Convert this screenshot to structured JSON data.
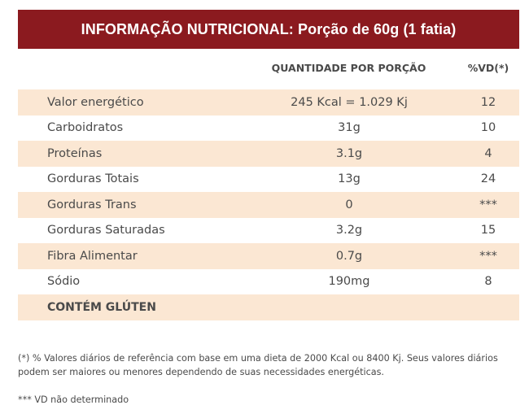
{
  "title": "INFORMAÇÃO NUTRICIONAL: Porção de 60g (1 fatia)",
  "columns": {
    "quantity": "QUANTIDADE POR PORÇÃO",
    "vd": "%VD(*)"
  },
  "rows": [
    {
      "label": "Valor energético",
      "quantity": "245 Kcal = 1.029 Kj",
      "vd": "12"
    },
    {
      "label": "Carboidratos",
      "quantity": "31g",
      "vd": "10"
    },
    {
      "label": "Proteínas",
      "quantity": "3.1g",
      "vd": "4"
    },
    {
      "label": "Gorduras Totais",
      "quantity": "13g",
      "vd": "24"
    },
    {
      "label": "Gorduras Trans",
      "quantity": "0",
      "vd": "***"
    },
    {
      "label": "Gorduras Saturadas",
      "quantity": "3.2g",
      "vd": "15"
    },
    {
      "label": "Fibra Alimentar",
      "quantity": "0.7g",
      "vd": "***"
    },
    {
      "label": "Sódio",
      "quantity": "190mg",
      "vd": "8"
    }
  ],
  "gluten_notice": "CONTÉM GLÚTEN",
  "footnote_vd": "(*) % Valores diários de referência com base em uma dieta de 2000 Kcal ou 8400 Kj. Seus valores diários podem ser maiores ou menores dependendo de suas necessidades energéticas.",
  "footnote_undetermined": "*** VD não determinado",
  "colors": {
    "header_bg": "#8b1a1f",
    "row_shade": "#fbe7d3"
  }
}
